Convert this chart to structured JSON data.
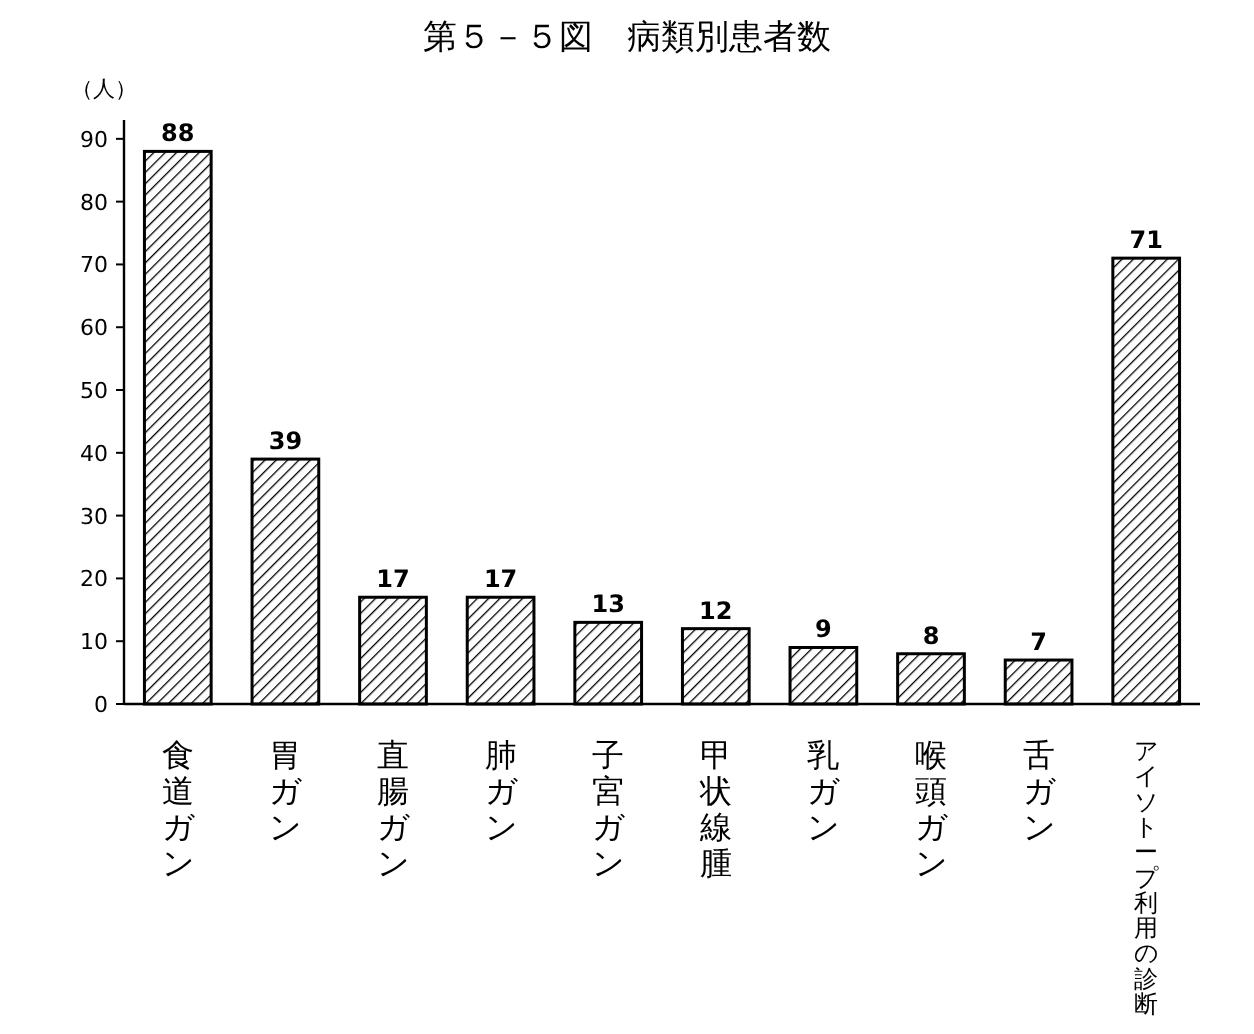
{
  "chart_data": {
    "type": "bar",
    "title": "第５－５図　病類別患者数",
    "ylabel": "（人）",
    "categories": [
      "食道ガン",
      "胃ガン",
      "直腸ガン",
      "肺ガン",
      "子宮ガン",
      "甲状線腫",
      "乳ガン",
      "喉頭ガン",
      "舌ガン",
      "アイソトープ利用の診断"
    ],
    "values": [
      88,
      39,
      17,
      17,
      13,
      12,
      9,
      8,
      7,
      71
    ],
    "color": "#000000",
    "data_labels": true,
    "ylim": [
      0,
      93
    ],
    "yticks": [
      0,
      10,
      20,
      30,
      40,
      50,
      60,
      70,
      80,
      90
    ]
  }
}
